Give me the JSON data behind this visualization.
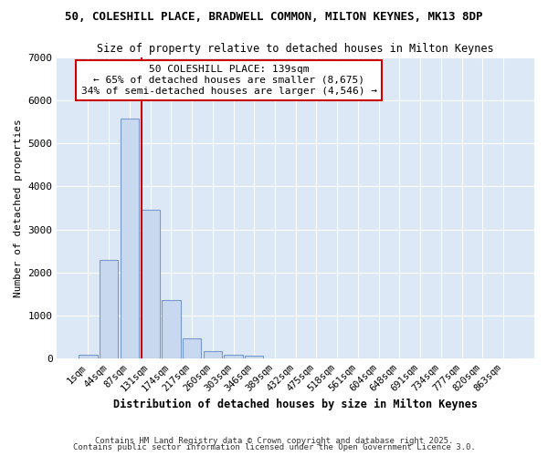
{
  "title_line1": "50, COLESHILL PLACE, BRADWELL COMMON, MILTON KEYNES, MK13 8DP",
  "title_line2": "Size of property relative to detached houses in Milton Keynes",
  "xlabel": "Distribution of detached houses by size in Milton Keynes",
  "ylabel": "Number of detached properties",
  "categories": [
    "1sqm",
    "44sqm",
    "87sqm",
    "131sqm",
    "174sqm",
    "217sqm",
    "260sqm",
    "303sqm",
    "346sqm",
    "389sqm",
    "432sqm",
    "475sqm",
    "518sqm",
    "561sqm",
    "604sqm",
    "648sqm",
    "691sqm",
    "734sqm",
    "777sqm",
    "820sqm",
    "863sqm"
  ],
  "values": [
    75,
    2300,
    5580,
    3450,
    1350,
    470,
    165,
    90,
    65,
    0,
    0,
    0,
    0,
    0,
    0,
    0,
    0,
    0,
    0,
    0,
    0
  ],
  "bar_color": "#c8d8ee",
  "bar_edge_color": "#7799cc",
  "annotation_text": "50 COLESHILL PLACE: 139sqm\n← 65% of detached houses are smaller (8,675)\n34% of semi-detached houses are larger (4,546) →",
  "annotation_box_color": "#ffffff",
  "annotation_box_edge": "#cc0000",
  "red_line_color": "#cc0000",
  "ylim": [
    0,
    7000
  ],
  "yticks": [
    0,
    1000,
    2000,
    3000,
    4000,
    5000,
    6000,
    7000
  ],
  "fig_bg_color": "#ffffff",
  "plot_bg_color": "#dce8f5",
  "grid_color": "#ffffff",
  "footer1": "Contains HM Land Registry data © Crown copyright and database right 2025.",
  "footer2": "Contains public sector information licensed under the Open Government Licence 3.0."
}
